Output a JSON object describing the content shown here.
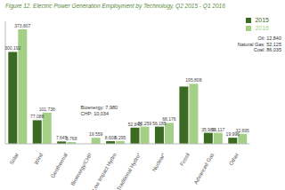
{
  "chart_data": {
    "type": "bar",
    "title": "Figure 12. Electric Power Generation Employment by Technology, Q2 2015 - Q1 2016",
    "categories": [
      "Solar",
      "Wind",
      "Geothermal",
      "Bioenergy/CHP",
      "Low Impact Hydro",
      "Traditional Hydro*",
      "Nuclear*",
      "Fossil",
      "Advanced Gas",
      "Other"
    ],
    "series": [
      {
        "name": "2015",
        "color": "#3b6a22",
        "values": [
          300192,
          77088,
          7645,
          null,
          8608,
          52845,
          56185,
          187000,
          35980,
          19996
        ],
        "value_labels": [
          "300,192",
          "77,088",
          "7,645",
          null,
          "8,608",
          "52,845",
          "56,185",
          null,
          "35,980",
          "19,996"
        ]
      },
      {
        "name": "2016",
        "color": "#a3cf86",
        "values": [
          373807,
          101738,
          5768,
          19559,
          9295,
          56259,
          68176,
          195808,
          36117,
          32695
        ],
        "value_labels": [
          "373,807",
          "101,738",
          "5,768",
          "19,559",
          "9,295",
          "56,259",
          "68,176",
          "195,808",
          "36,117",
          "32,695"
        ]
      }
    ],
    "ylim": [
      0,
      400000
    ],
    "tick_labels": "x",
    "grid": false,
    "legend": "upper right",
    "data_labels": true,
    "annotations": [
      {
        "category": "Bioenergy/CHP",
        "lines": [
          "Bioenergy: 7,980",
          "CHP: 10,034"
        ]
      },
      {
        "category": "Fossil",
        "lines": [
          "Oil: 12,840",
          "Natural Gas: 52,125",
          "Coal: 86,035"
        ]
      }
    ]
  }
}
